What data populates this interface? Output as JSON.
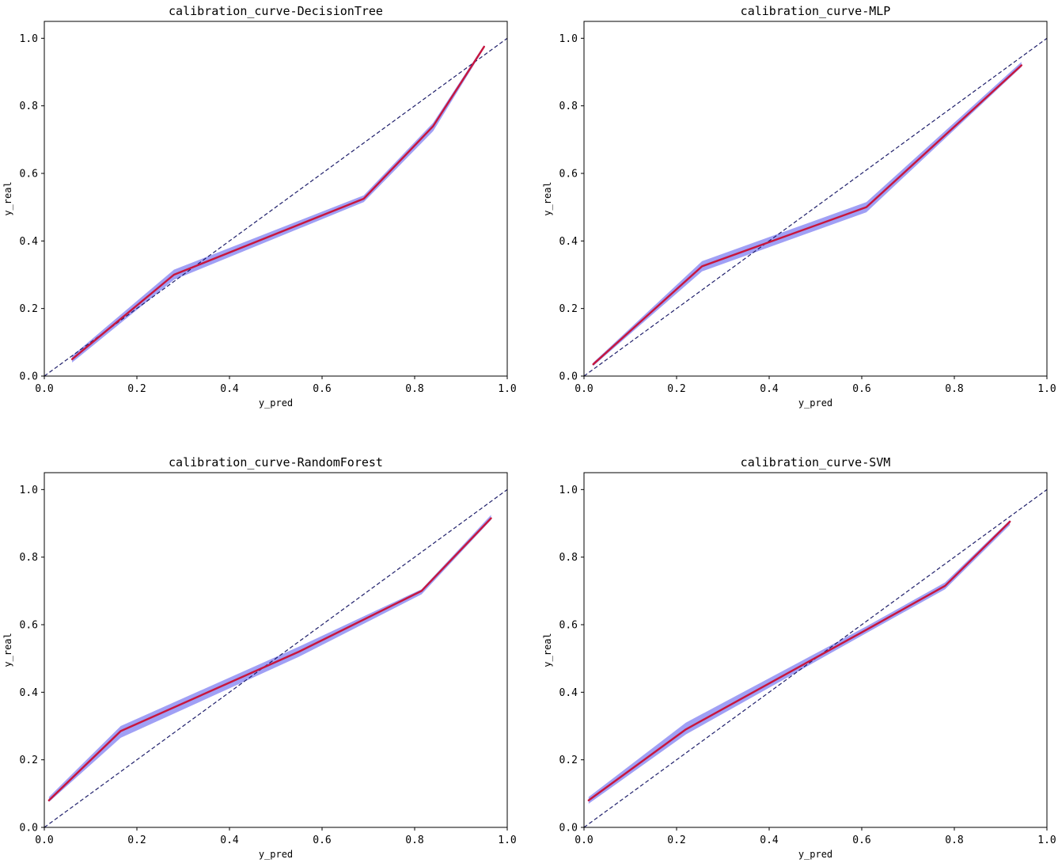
{
  "colors": {
    "curve": "#c8163c",
    "band": "#8080f2",
    "diagonal": "#1f1f6b",
    "axes": "#000000",
    "background": "#ffffff"
  },
  "chart_data": [
    {
      "type": "line",
      "title": "calibration_curve-DecisionTree",
      "xlabel": "y_pred",
      "ylabel": "y_real",
      "xlim": [
        0.0,
        1.0
      ],
      "ylim": [
        0.0,
        1.05
      ],
      "xticks": [
        "0.0",
        "0.2",
        "0.4",
        "0.6",
        "0.8",
        "1.0"
      ],
      "yticks": [
        "0.0",
        "0.2",
        "0.4",
        "0.6",
        "0.8",
        "1.0"
      ],
      "grid": false,
      "reference_line": {
        "style": "dashed",
        "x": [
          0.0,
          1.0
        ],
        "y": [
          0.0,
          1.0
        ]
      },
      "curve": {
        "x": [
          0.06,
          0.28,
          0.69,
          0.84,
          0.95
        ],
        "y": [
          0.05,
          0.3,
          0.525,
          0.74,
          0.975
        ]
      },
      "band": {
        "x": [
          0.06,
          0.28,
          0.69,
          0.84,
          0.95
        ],
        "lower": [
          0.04,
          0.285,
          0.515,
          0.725,
          0.97
        ],
        "upper": [
          0.06,
          0.315,
          0.535,
          0.75,
          0.98
        ]
      }
    },
    {
      "type": "line",
      "title": "calibration_curve-MLP",
      "xlabel": "y_pred",
      "ylabel": "y_real",
      "xlim": [
        0.0,
        1.0
      ],
      "ylim": [
        0.0,
        1.05
      ],
      "xticks": [
        "0.0",
        "0.2",
        "0.4",
        "0.6",
        "0.8",
        "1.0"
      ],
      "yticks": [
        "0.0",
        "0.2",
        "0.4",
        "0.6",
        "0.8",
        "1.0"
      ],
      "grid": false,
      "reference_line": {
        "style": "dashed",
        "x": [
          0.0,
          1.0
        ],
        "y": [
          0.0,
          1.0
        ]
      },
      "curve": {
        "x": [
          0.02,
          0.255,
          0.61,
          0.945
        ],
        "y": [
          0.035,
          0.325,
          0.5,
          0.92
        ]
      },
      "band": {
        "x": [
          0.02,
          0.255,
          0.61,
          0.945
        ],
        "lower": [
          0.03,
          0.31,
          0.485,
          0.915
        ],
        "upper": [
          0.04,
          0.34,
          0.515,
          0.93
        ]
      }
    },
    {
      "type": "line",
      "title": "calibration_curve-RandomForest",
      "xlabel": "y_pred",
      "ylabel": "y_real",
      "xlim": [
        0.0,
        1.0
      ],
      "ylim": [
        0.0,
        1.05
      ],
      "xticks": [
        "0.0",
        "0.2",
        "0.4",
        "0.6",
        "0.8",
        "1.0"
      ],
      "yticks": [
        "0.0",
        "0.2",
        "0.4",
        "0.6",
        "0.8",
        "1.0"
      ],
      "grid": false,
      "reference_line": {
        "style": "dashed",
        "x": [
          0.0,
          1.0
        ],
        "y": [
          0.0,
          1.0
        ]
      },
      "curve": {
        "x": [
          0.01,
          0.165,
          0.55,
          0.815,
          0.965
        ],
        "y": [
          0.08,
          0.285,
          0.52,
          0.7,
          0.915
        ]
      },
      "band": {
        "x": [
          0.01,
          0.165,
          0.55,
          0.815,
          0.965
        ],
        "lower": [
          0.075,
          0.265,
          0.505,
          0.69,
          0.91
        ],
        "upper": [
          0.09,
          0.3,
          0.535,
          0.705,
          0.925
        ]
      }
    },
    {
      "type": "line",
      "title": "calibration_curve-SVM",
      "xlabel": "y_pred",
      "ylabel": "y_real",
      "xlim": [
        0.0,
        1.0
      ],
      "ylim": [
        0.0,
        1.05
      ],
      "xticks": [
        "0.0",
        "0.2",
        "0.4",
        "0.6",
        "0.8",
        "1.0"
      ],
      "yticks": [
        "0.0",
        "0.2",
        "0.4",
        "0.6",
        "0.8",
        "1.0"
      ],
      "grid": false,
      "reference_line": {
        "style": "dashed",
        "x": [
          0.0,
          1.0
        ],
        "y": [
          0.0,
          1.0
        ]
      },
      "curve": {
        "x": [
          0.01,
          0.22,
          0.61,
          0.78,
          0.92
        ],
        "y": [
          0.08,
          0.29,
          0.585,
          0.715,
          0.905
        ]
      },
      "band": {
        "x": [
          0.01,
          0.22,
          0.61,
          0.78,
          0.92
        ],
        "lower": [
          0.07,
          0.275,
          0.575,
          0.705,
          0.895
        ],
        "upper": [
          0.09,
          0.31,
          0.595,
          0.725,
          0.91
        ]
      }
    }
  ]
}
